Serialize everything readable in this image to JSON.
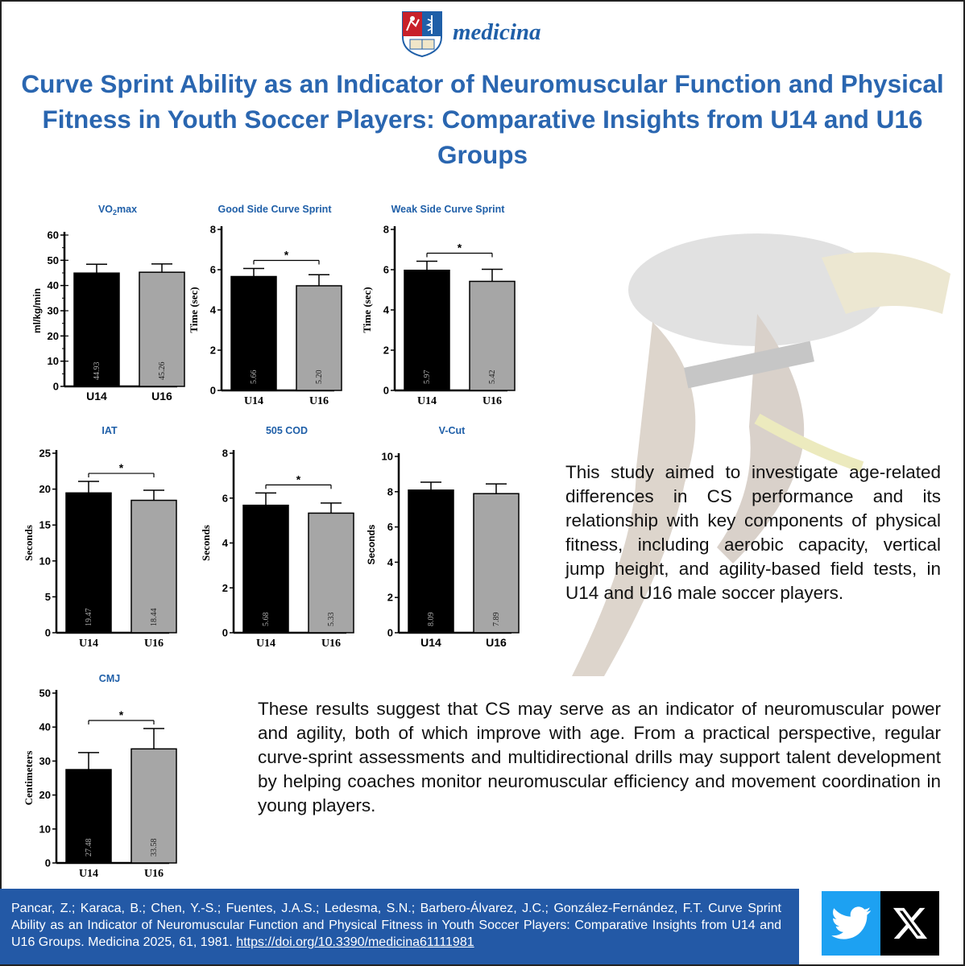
{
  "journal": {
    "name": "medicina"
  },
  "title": "Curve Sprint Ability as an Indicator of Neuromuscular Function and Physical Fitness in Youth Soccer Players: Comparative Insights from U14 and U16 Groups",
  "paragraphs": {
    "aim": "This study aimed to investigate age-related differences in CS performance and its relationship with key components of physical fitness, including aerobic capacity, vertical jump height, and agility-based field tests, in U14 and U16 male soccer players.",
    "conclusion": "These results suggest that CS may serve as an indicator of neuromuscular power and agility, both of which improve with age. From a practical perspective, regular curve-sprint assessments and multidirectional drills may support talent development by helping coaches monitor neuromuscular efficiency and movement coordination in young players."
  },
  "citation": {
    "text": "Pancar, Z.; Karaca, B.; Chen, Y.-S.; Fuentes, J.A.S.; Ledesma, S.N.; Barbero-Álvarez, J.C.; González-Fernández, F.T. Curve Sprint Ability as an Indicator of Neuromuscular Function and Physical Fitness in Youth Soccer Players: Comparative Insights from U14 and U16 Groups. Medicina 2025, 61, 1981.",
    "doi": "https://doi.org/10.3390/medicina61111981"
  },
  "social": {
    "twitter_icon": "twitter-bird-icon",
    "x_icon": "x-logo-icon"
  },
  "colors": {
    "accent": "#1f5fa8",
    "banner": "#2359a6",
    "twitter": "#1da1f2",
    "bar_u14": "#000000",
    "bar_u16": "#a6a6a6"
  },
  "chart_data": [
    {
      "type": "bar",
      "title": "VO",
      "title_sub": "2",
      "title_suffix": "max",
      "ylabel": "ml/kg/min",
      "ylim": [
        0,
        60
      ],
      "yticks": [
        0,
        10,
        20,
        30,
        40,
        50,
        60
      ],
      "categories": [
        "U14",
        "U16"
      ],
      "values": [
        44.93,
        45.26
      ],
      "labels": [
        "44.93",
        "45.26"
      ],
      "error": [
        3.5,
        3.3
      ],
      "significant": false
    },
    {
      "type": "bar",
      "title": "Good Side Curve Sprint",
      "ylabel": "Time (sec)",
      "ylim": [
        0,
        8
      ],
      "yticks": [
        0,
        2,
        4,
        6,
        8
      ],
      "categories": [
        "U14",
        "U16"
      ],
      "values": [
        5.66,
        5.2
      ],
      "labels": [
        "5.66",
        "5.20"
      ],
      "error": [
        0.4,
        0.55
      ],
      "significant": true,
      "significance_mark": "*"
    },
    {
      "type": "bar",
      "title": "Weak Side Curve Sprint",
      "ylabel": "Time (sec)",
      "ylim": [
        0,
        8
      ],
      "yticks": [
        0,
        2,
        4,
        6,
        8
      ],
      "categories": [
        "U14",
        "U16"
      ],
      "values": [
        5.97,
        5.42
      ],
      "labels": [
        "5.97",
        "5.42"
      ],
      "error": [
        0.45,
        0.6
      ],
      "significant": true,
      "significance_mark": "*"
    },
    {
      "type": "bar",
      "title": "IAT",
      "ylabel": "Seconds",
      "ylim": [
        0,
        25
      ],
      "yticks": [
        0,
        5,
        10,
        15,
        20,
        25
      ],
      "categories": [
        "U14",
        "U16"
      ],
      "values": [
        19.47,
        18.44
      ],
      "labels": [
        "19.47",
        "18.44"
      ],
      "error": [
        1.6,
        1.4
      ],
      "significant": true,
      "significance_mark": "*"
    },
    {
      "type": "bar",
      "title": "505 COD",
      "ylabel": "Seconds",
      "ylim": [
        0,
        8
      ],
      "yticks": [
        0,
        2,
        4,
        6,
        8
      ],
      "categories": [
        "U14",
        "U16"
      ],
      "values": [
        5.68,
        5.33
      ],
      "labels": [
        "5.68",
        "5.33"
      ],
      "error": [
        0.55,
        0.45
      ],
      "significant": true,
      "significance_mark": "*"
    },
    {
      "type": "bar",
      "title": "V-Cut",
      "ylabel": "Seconds",
      "ylim": [
        0,
        10
      ],
      "yticks": [
        0,
        2,
        4,
        6,
        8,
        10
      ],
      "categories": [
        "U14",
        "U16"
      ],
      "values": [
        8.09,
        7.89
      ],
      "labels": [
        "8.09",
        "7.89"
      ],
      "error": [
        0.45,
        0.55
      ],
      "significant": false
    },
    {
      "type": "bar",
      "title": "CMJ",
      "ylabel": "Centimeters",
      "ylim": [
        0,
        50
      ],
      "yticks": [
        0,
        10,
        20,
        30,
        40,
        50
      ],
      "categories": [
        "U14",
        "U16"
      ],
      "values": [
        27.48,
        33.58
      ],
      "labels": [
        "27.48",
        "33.58"
      ],
      "error": [
        5.0,
        6.0
      ],
      "significant": true,
      "significance_mark": "*"
    }
  ]
}
